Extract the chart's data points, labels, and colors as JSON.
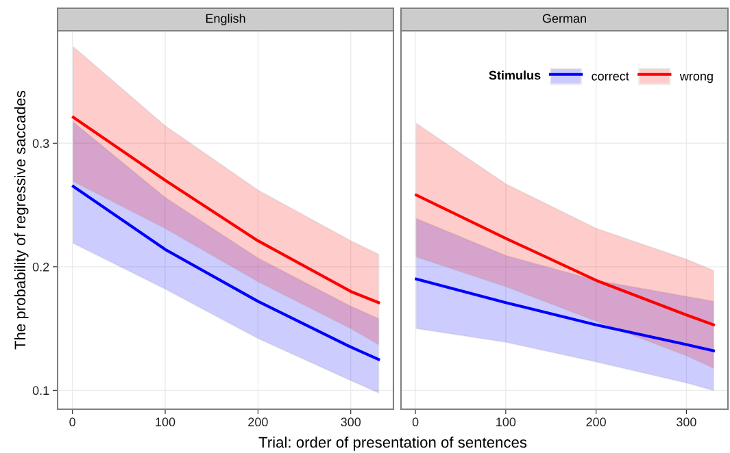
{
  "chart_data": [
    {
      "type": "line",
      "title": "English",
      "ylabel": "The probability of regressive saccades",
      "xlabel": "Trial: order of presentation of sentences",
      "xlim": [
        -16,
        346
      ],
      "xticks": [
        0,
        100,
        200,
        300
      ],
      "ylim": [
        0.0847,
        0.391
      ],
      "yticks": [
        0.1,
        0.2,
        0.3
      ],
      "grid": true,
      "legend": false,
      "line_style": "solid",
      "marker": "none",
      "series": [
        {
          "color": "#0000ff",
          "x": [
            1,
            100,
            200,
            300,
            330
          ],
          "values": [
            0.265,
            0.214,
            0.172,
            0.135,
            0.125
          ],
          "lower": [
            0.219,
            0.182,
            0.142,
            0.108,
            0.098
          ],
          "upper": [
            0.317,
            0.256,
            0.207,
            0.168,
            0.158
          ]
        },
        {
          "color": "#ff0000",
          "x": [
            1,
            100,
            200,
            300,
            330
          ],
          "values": [
            0.321,
            0.27,
            0.221,
            0.18,
            0.171
          ],
          "lower": [
            0.269,
            0.231,
            0.188,
            0.15,
            0.137
          ],
          "upper": [
            0.378,
            0.314,
            0.262,
            0.221,
            0.21
          ]
        }
      ]
    },
    {
      "type": "line",
      "title": "German",
      "xlim": [
        -16,
        346
      ],
      "xticks": [
        0,
        100,
        200,
        300
      ],
      "ylim": [
        0.0847,
        0.391
      ],
      "yticks": [
        0.1,
        0.2,
        0.3
      ],
      "tick_labels": "x",
      "grid": true,
      "legend": "top right",
      "legend_title": "Stimulus",
      "line_style": "solid",
      "marker": "none",
      "series": [
        {
          "name": "correct",
          "color": "#0000ff",
          "x": [
            1,
            100,
            200,
            300,
            330
          ],
          "values": [
            0.19,
            0.171,
            0.153,
            0.137,
            0.132
          ],
          "lower": [
            0.15,
            0.139,
            0.123,
            0.106,
            0.1
          ],
          "upper": [
            0.239,
            0.209,
            0.189,
            0.176,
            0.172
          ]
        },
        {
          "name": "wrong",
          "color": "#ff0000",
          "x": [
            1,
            100,
            200,
            300,
            330
          ],
          "values": [
            0.258,
            0.223,
            0.189,
            0.161,
            0.153
          ],
          "lower": [
            0.208,
            0.184,
            0.156,
            0.128,
            0.118
          ],
          "upper": [
            0.316,
            0.267,
            0.231,
            0.206,
            0.197
          ]
        }
      ]
    }
  ]
}
